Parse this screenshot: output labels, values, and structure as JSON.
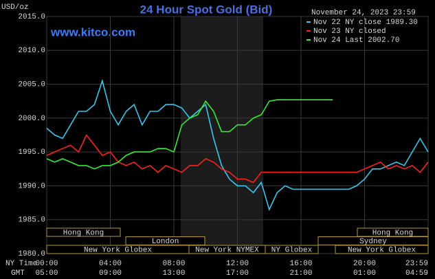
{
  "chart_data": {
    "type": "line",
    "title": "24 Hour Spot Gold (Bid)",
    "website": "www.kitco.com",
    "timestamp": "November 24, 2023 23:59",
    "y_label": "USD/oz",
    "x_label": "NY Time",
    "gmt_label": "GMT",
    "x": [
      0,
      0.5,
      1,
      1.5,
      2,
      2.5,
      3,
      3.5,
      4,
      4.5,
      5,
      5.5,
      6,
      6.5,
      7,
      7.5,
      8,
      8.5,
      9,
      9.5,
      10,
      10.5,
      11,
      11.5,
      12,
      12.5,
      13,
      13.5,
      14,
      14.5,
      15,
      15.5,
      16,
      16.5,
      17,
      17.5,
      18,
      18.5,
      19,
      19.5,
      20,
      20.5,
      21,
      21.5,
      22,
      22.5,
      23,
      23.5,
      24
    ],
    "series": [
      {
        "name": "Nov 22 NY close 1989.30",
        "color": "#33c8f0",
        "values": [
          1998.5,
          1997.5,
          1997,
          1999,
          2001,
          2001,
          2002,
          2005.5,
          2001,
          1999,
          2001,
          2002,
          1999,
          2001,
          2001,
          2002,
          2002,
          2001.5,
          2000,
          2001,
          2002,
          1997,
          1993,
          1991,
          1990,
          1990,
          1989,
          1990.5,
          1986.5,
          1989,
          1990,
          1989.5,
          1989.5,
          1989.5,
          1989.5,
          1989.5,
          1989.5,
          1989.5,
          1989.5,
          1990,
          1991,
          1992.5,
          1992.5,
          1993,
          1993.5,
          1993,
          1995,
          1997,
          1995
        ]
      },
      {
        "name": "Nov 23 NY closed",
        "color": "#ff2020",
        "values": [
          1994.5,
          1995,
          1995.5,
          1996,
          1995,
          1997.5,
          1996,
          1994.5,
          1995,
          1993.5,
          1993,
          1993.5,
          1992.5,
          1993,
          1992,
          1993,
          1992.5,
          1992,
          1993,
          1993,
          1994,
          1993.5,
          1992.5,
          1992,
          1991,
          1991,
          1990.5,
          1992,
          1992,
          1992,
          1992,
          1992,
          1992,
          1992,
          1992,
          1992,
          1992,
          1992,
          1992,
          1992,
          1992.5,
          1993,
          1993.5,
          1992.5,
          1993,
          1992.5,
          1993,
          1992,
          1993.5
        ]
      },
      {
        "name": "Nov 24 Last 2002.70",
        "color": "#30f030",
        "values": [
          1994,
          1993.5,
          1994,
          1993.5,
          1993,
          1993,
          1992.5,
          1993,
          1993,
          1993.5,
          1994.5,
          1995,
          1995,
          1995,
          1995.5,
          1995.5,
          1995,
          1999,
          2000,
          2000.5,
          2002.5,
          2001,
          1998,
          1998,
          1999,
          1999,
          2000,
          2000.5,
          2002.5,
          2002.7,
          2002.7,
          2002.7,
          2002.7,
          2002.7,
          2002.7,
          2002.7,
          2002.7,
          null,
          null,
          null,
          null,
          null,
          null,
          null,
          null,
          null,
          null,
          null,
          null
        ]
      }
    ],
    "xlim": [
      0,
      24
    ],
    "xticks": [
      {
        "value": 0,
        "label": "00:00"
      },
      {
        "value": 4,
        "label": "04:00"
      },
      {
        "value": 8,
        "label": "08:00"
      },
      {
        "value": 12,
        "label": "12:00"
      },
      {
        "value": 16,
        "label": "16:00"
      },
      {
        "value": 20,
        "label": "20:00"
      },
      {
        "value": 24,
        "label": "23:59"
      }
    ],
    "gmt_ticks": [
      "05:00",
      "09:00",
      "13:00",
      "17:00",
      "21:00",
      "01:00",
      "04:59"
    ],
    "ylim": [
      1980,
      2015
    ],
    "yticks": [
      {
        "value": 1980,
        "label": "1980.0"
      },
      {
        "value": 1985,
        "label": "1985.0"
      },
      {
        "value": 1990,
        "label": "1990.0"
      },
      {
        "value": 1995,
        "label": "1995.0"
      },
      {
        "value": 2000,
        "label": "2000.0"
      },
      {
        "value": 2005,
        "label": "2005.0"
      },
      {
        "value": 2010,
        "label": "2010.0"
      },
      {
        "value": 2015,
        "label": "2015.0"
      }
    ],
    "grid": true,
    "sessions": [
      "Hong Kong",
      "Hong Kong",
      "London",
      "Sydney",
      "New York Globex",
      "New York NYMEX",
      "NY Globex",
      "New York Globex"
    ]
  }
}
